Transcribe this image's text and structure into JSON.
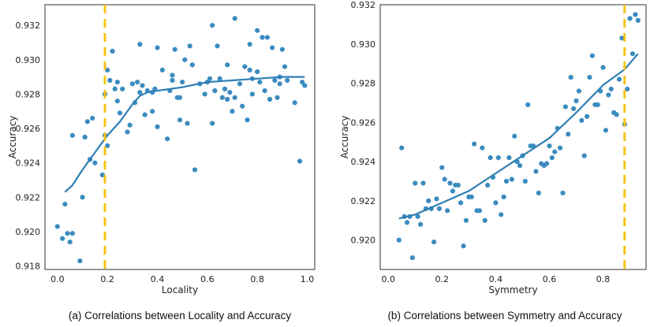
{
  "colors": {
    "points": "#3b8bc0",
    "fit": "#2e7fb5",
    "threshold": "#f5c518",
    "frame": "#333333"
  },
  "chart_data": [
    {
      "type": "scatter",
      "xlabel": "Locality",
      "ylabel": "Accuracy",
      "caption": "(a) Correlations between Locality and Accuracy",
      "xlim": [
        -0.05,
        1.03
      ],
      "ylim": [
        0.9178,
        0.9332
      ],
      "xticks": [
        {
          "value": 0.0,
          "label": "0.0"
        },
        {
          "value": 0.2,
          "label": "0.2"
        },
        {
          "value": 0.4,
          "label": "0.4"
        },
        {
          "value": 0.6,
          "label": "0.6"
        },
        {
          "value": 0.8,
          "label": "0.8"
        },
        {
          "value": 1.0,
          "label": "1.0"
        }
      ],
      "yticks": [
        {
          "value": 0.918,
          "label": "0.918"
        },
        {
          "value": 0.92,
          "label": "0.920"
        },
        {
          "value": 0.922,
          "label": "0.922"
        },
        {
          "value": 0.924,
          "label": "0.924"
        },
        {
          "value": 0.926,
          "label": "0.926"
        },
        {
          "value": 0.928,
          "label": "0.928"
        },
        {
          "value": 0.93,
          "label": "0.930"
        },
        {
          "value": 0.932,
          "label": "0.932"
        }
      ],
      "threshold_x": 0.19,
      "points": [
        [
          0.0,
          0.9203
        ],
        [
          0.02,
          0.9196
        ],
        [
          0.03,
          0.9216
        ],
        [
          0.04,
          0.9199
        ],
        [
          0.05,
          0.9194
        ],
        [
          0.06,
          0.9199
        ],
        [
          0.06,
          0.9256
        ],
        [
          0.09,
          0.9183
        ],
        [
          0.1,
          0.922
        ],
        [
          0.11,
          0.9255
        ],
        [
          0.12,
          0.9264
        ],
        [
          0.13,
          0.9242
        ],
        [
          0.14,
          0.9266
        ],
        [
          0.15,
          0.924
        ],
        [
          0.18,
          0.9233
        ],
        [
          0.19,
          0.9256
        ],
        [
          0.19,
          0.928
        ],
        [
          0.2,
          0.9294
        ],
        [
          0.2,
          0.925
        ],
        [
          0.21,
          0.9288
        ],
        [
          0.22,
          0.9305
        ],
        [
          0.23,
          0.9283
        ],
        [
          0.24,
          0.9276
        ],
        [
          0.24,
          0.9287
        ],
        [
          0.25,
          0.9269
        ],
        [
          0.26,
          0.9283
        ],
        [
          0.28,
          0.9258
        ],
        [
          0.29,
          0.9262
        ],
        [
          0.3,
          0.9286
        ],
        [
          0.31,
          0.9275
        ],
        [
          0.32,
          0.9287
        ],
        [
          0.33,
          0.9281
        ],
        [
          0.33,
          0.9309
        ],
        [
          0.34,
          0.9285
        ],
        [
          0.35,
          0.9268
        ],
        [
          0.36,
          0.9282
        ],
        [
          0.38,
          0.9281
        ],
        [
          0.38,
          0.927
        ],
        [
          0.39,
          0.9283
        ],
        [
          0.4,
          0.9261
        ],
        [
          0.4,
          0.9307
        ],
        [
          0.42,
          0.9294
        ],
        [
          0.44,
          0.9254
        ],
        [
          0.45,
          0.9282
        ],
        [
          0.46,
          0.9291
        ],
        [
          0.46,
          0.9288
        ],
        [
          0.47,
          0.9306
        ],
        [
          0.48,
          0.9278
        ],
        [
          0.49,
          0.9278
        ],
        [
          0.49,
          0.9265
        ],
        [
          0.5,
          0.9287
        ],
        [
          0.51,
          0.93
        ],
        [
          0.52,
          0.9263
        ],
        [
          0.53,
          0.9308
        ],
        [
          0.54,
          0.9297
        ],
        [
          0.55,
          0.9236
        ],
        [
          0.57,
          0.9286
        ],
        [
          0.59,
          0.928
        ],
        [
          0.6,
          0.9287
        ],
        [
          0.61,
          0.9289
        ],
        [
          0.62,
          0.932
        ],
        [
          0.62,
          0.9263
        ],
        [
          0.63,
          0.9282
        ],
        [
          0.64,
          0.9308
        ],
        [
          0.65,
          0.9289
        ],
        [
          0.66,
          0.9278
        ],
        [
          0.67,
          0.9283
        ],
        [
          0.68,
          0.9297
        ],
        [
          0.68,
          0.9277
        ],
        [
          0.69,
          0.9281
        ],
        [
          0.7,
          0.927
        ],
        [
          0.71,
          0.9278
        ],
        [
          0.71,
          0.9324
        ],
        [
          0.73,
          0.9286
        ],
        [
          0.74,
          0.9273
        ],
        [
          0.75,
          0.9296
        ],
        [
          0.76,
          0.9265
        ],
        [
          0.77,
          0.9294
        ],
        [
          0.77,
          0.9309
        ],
        [
          0.78,
          0.9289
        ],
        [
          0.78,
          0.928
        ],
        [
          0.8,
          0.9293
        ],
        [
          0.8,
          0.9317
        ],
        [
          0.81,
          0.9287
        ],
        [
          0.82,
          0.9313
        ],
        [
          0.83,
          0.9282
        ],
        [
          0.84,
          0.9313
        ],
        [
          0.85,
          0.9277
        ],
        [
          0.86,
          0.9307
        ],
        [
          0.87,
          0.9288
        ],
        [
          0.88,
          0.9278
        ],
        [
          0.89,
          0.929
        ],
        [
          0.89,
          0.9286
        ],
        [
          0.9,
          0.9306
        ],
        [
          0.91,
          0.9296
        ],
        [
          0.92,
          0.9288
        ],
        [
          0.95,
          0.9275
        ],
        [
          0.97,
          0.9241
        ],
        [
          0.98,
          0.9287
        ],
        [
          0.99,
          0.9285
        ]
      ],
      "fit": [
        [
          0.03,
          0.9223
        ],
        [
          0.06,
          0.9227
        ],
        [
          0.1,
          0.9236
        ],
        [
          0.15,
          0.9246
        ],
        [
          0.2,
          0.9256
        ],
        [
          0.25,
          0.9264
        ],
        [
          0.3,
          0.9274
        ],
        [
          0.33,
          0.9279
        ],
        [
          0.36,
          0.9281
        ],
        [
          0.4,
          0.9282
        ],
        [
          0.5,
          0.9284
        ],
        [
          0.6,
          0.9287
        ],
        [
          0.7,
          0.9288
        ],
        [
          0.8,
          0.9289
        ],
        [
          0.9,
          0.929
        ],
        [
          0.99,
          0.929
        ]
      ]
    },
    {
      "type": "scatter",
      "xlabel": "Symmetry",
      "ylabel": "Accuracy",
      "caption": "(b) Correlations between Symmetry and Accuracy",
      "xlim": [
        -0.03,
        0.96
      ],
      "ylim": [
        0.9185,
        0.932
      ],
      "xticks": [
        {
          "value": 0.0,
          "label": "0.0"
        },
        {
          "value": 0.2,
          "label": "0.2"
        },
        {
          "value": 0.4,
          "label": "0.4"
        },
        {
          "value": 0.6,
          "label": "0.6"
        },
        {
          "value": 0.8,
          "label": "0.8"
        }
      ],
      "yticks": [
        {
          "value": 0.92,
          "label": "0.920"
        },
        {
          "value": 0.922,
          "label": "0.922"
        },
        {
          "value": 0.924,
          "label": "0.924"
        },
        {
          "value": 0.926,
          "label": "0.926"
        },
        {
          "value": 0.928,
          "label": "0.928"
        },
        {
          "value": 0.93,
          "label": "0.930"
        },
        {
          "value": 0.932,
          "label": "0.932"
        }
      ],
      "threshold_x": 0.88,
      "points": [
        [
          0.04,
          0.92
        ],
        [
          0.05,
          0.9247
        ],
        [
          0.06,
          0.9212
        ],
        [
          0.07,
          0.9209
        ],
        [
          0.08,
          0.9212
        ],
        [
          0.09,
          0.9191
        ],
        [
          0.1,
          0.9229
        ],
        [
          0.11,
          0.9212
        ],
        [
          0.12,
          0.9208
        ],
        [
          0.13,
          0.9229
        ],
        [
          0.14,
          0.9216
        ],
        [
          0.15,
          0.922
        ],
        [
          0.16,
          0.9216
        ],
        [
          0.17,
          0.9199
        ],
        [
          0.18,
          0.9221
        ],
        [
          0.19,
          0.9216
        ],
        [
          0.2,
          0.9237
        ],
        [
          0.21,
          0.9231
        ],
        [
          0.22,
          0.9215
        ],
        [
          0.23,
          0.9229
        ],
        [
          0.24,
          0.9225
        ],
        [
          0.25,
          0.9228
        ],
        [
          0.26,
          0.9228
        ],
        [
          0.27,
          0.9219
        ],
        [
          0.28,
          0.9197
        ],
        [
          0.29,
          0.921
        ],
        [
          0.3,
          0.9222
        ],
        [
          0.31,
          0.9222
        ],
        [
          0.32,
          0.9249
        ],
        [
          0.33,
          0.9215
        ],
        [
          0.34,
          0.9215
        ],
        [
          0.35,
          0.9247
        ],
        [
          0.36,
          0.921
        ],
        [
          0.37,
          0.9228
        ],
        [
          0.38,
          0.9242
        ],
        [
          0.39,
          0.9232
        ],
        [
          0.4,
          0.9219
        ],
        [
          0.41,
          0.9242
        ],
        [
          0.42,
          0.9213
        ],
        [
          0.43,
          0.9222
        ],
        [
          0.44,
          0.923
        ],
        [
          0.45,
          0.9242
        ],
        [
          0.46,
          0.9231
        ],
        [
          0.47,
          0.9253
        ],
        [
          0.48,
          0.924
        ],
        [
          0.49,
          0.9238
        ],
        [
          0.5,
          0.9243
        ],
        [
          0.51,
          0.923
        ],
        [
          0.52,
          0.9269
        ],
        [
          0.53,
          0.9248
        ],
        [
          0.54,
          0.9248
        ],
        [
          0.55,
          0.9235
        ],
        [
          0.56,
          0.9224
        ],
        [
          0.57,
          0.9239
        ],
        [
          0.58,
          0.9238
        ],
        [
          0.59,
          0.9239
        ],
        [
          0.6,
          0.9248
        ],
        [
          0.61,
          0.9242
        ],
        [
          0.62,
          0.9245
        ],
        [
          0.63,
          0.9257
        ],
        [
          0.64,
          0.9247
        ],
        [
          0.65,
          0.9224
        ],
        [
          0.66,
          0.9268
        ],
        [
          0.67,
          0.9254
        ],
        [
          0.68,
          0.9283
        ],
        [
          0.69,
          0.9267
        ],
        [
          0.7,
          0.9271
        ],
        [
          0.71,
          0.9276
        ],
        [
          0.72,
          0.9261
        ],
        [
          0.73,
          0.9243
        ],
        [
          0.74,
          0.9263
        ],
        [
          0.75,
          0.9283
        ],
        [
          0.76,
          0.9294
        ],
        [
          0.77,
          0.9269
        ],
        [
          0.78,
          0.9269
        ],
        [
          0.79,
          0.9276
        ],
        [
          0.8,
          0.9288
        ],
        [
          0.81,
          0.9256
        ],
        [
          0.82,
          0.9274
        ],
        [
          0.83,
          0.9277
        ],
        [
          0.84,
          0.9265
        ],
        [
          0.85,
          0.9264
        ],
        [
          0.86,
          0.9282
        ],
        [
          0.87,
          0.9303
        ],
        [
          0.88,
          0.9259
        ],
        [
          0.89,
          0.9277
        ],
        [
          0.9,
          0.9313
        ],
        [
          0.91,
          0.9295
        ],
        [
          0.92,
          0.9315
        ],
        [
          0.93,
          0.9312
        ]
      ],
      "fit": [
        [
          0.04,
          0.9211
        ],
        [
          0.1,
          0.9213
        ],
        [
          0.2,
          0.9219
        ],
        [
          0.3,
          0.9225
        ],
        [
          0.4,
          0.9234
        ],
        [
          0.5,
          0.9243
        ],
        [
          0.6,
          0.9252
        ],
        [
          0.7,
          0.9265
        ],
        [
          0.8,
          0.9279
        ],
        [
          0.88,
          0.9287
        ],
        [
          0.93,
          0.9295
        ]
      ]
    }
  ]
}
